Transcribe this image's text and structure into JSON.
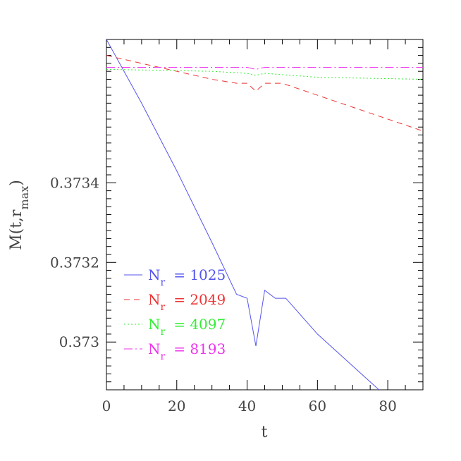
{
  "chart_data": {
    "type": "line",
    "xlabel": "t",
    "ylabel": "M(t,r_max)",
    "ylabel_parts": {
      "base": "M(t,r",
      "sub": "max",
      "close": ")"
    },
    "xlim": [
      0,
      90
    ],
    "ylim": [
      0.37288,
      0.37376
    ],
    "x_ticks": [
      0,
      20,
      40,
      60,
      80
    ],
    "x_tick_labels": [
      "0",
      "20",
      "40",
      "60",
      "80"
    ],
    "y_ticks": [
      0.373,
      0.3732,
      0.3734
    ],
    "y_tick_labels": [
      "0.373",
      "0.3732",
      "0.3734"
    ],
    "legend_position": "lower-left",
    "series": [
      {
        "name": "N_r = 1025",
        "label_base": "N",
        "label_sub": "r",
        "label_value": "= 1025",
        "color": "#5555ee",
        "dash": "solid",
        "points": [
          [
            0,
            0.37376
          ],
          [
            10,
            0.3736
          ],
          [
            20,
            0.37343
          ],
          [
            30,
            0.37325
          ],
          [
            37,
            0.37312
          ],
          [
            40,
            0.37311
          ],
          [
            42.5,
            0.37299
          ],
          [
            45,
            0.37313
          ],
          [
            48,
            0.37311
          ],
          [
            51,
            0.37311
          ],
          [
            55,
            0.37307
          ],
          [
            60,
            0.37302
          ],
          [
            70,
            0.37294
          ],
          [
            80,
            0.37286
          ],
          [
            90,
            0.37275
          ]
        ]
      },
      {
        "name": "N_r = 2049",
        "label_base": "N",
        "label_sub": "r",
        "label_value": "= 2049",
        "color": "#ee3333",
        "dash": "8,6",
        "points": [
          [
            0,
            0.37372
          ],
          [
            10,
            0.3737
          ],
          [
            20,
            0.37368
          ],
          [
            30,
            0.37366
          ],
          [
            37,
            0.37365
          ],
          [
            40,
            0.37365
          ],
          [
            42.5,
            0.37363
          ],
          [
            45,
            0.37365
          ],
          [
            50,
            0.37365
          ],
          [
            60,
            0.37362
          ],
          [
            70,
            0.37359
          ],
          [
            80,
            0.37356
          ],
          [
            90,
            0.37353
          ]
        ]
      },
      {
        "name": "N_r = 4097",
        "label_base": "N",
        "label_sub": "r",
        "label_value": "= 4097",
        "color": "#33ee33",
        "dash": "2,3",
        "points": [
          [
            0,
            0.373685
          ],
          [
            30,
            0.37368
          ],
          [
            40,
            0.373675
          ],
          [
            42.5,
            0.37367
          ],
          [
            45,
            0.373675
          ],
          [
            60,
            0.373665
          ],
          [
            90,
            0.37366
          ]
        ]
      },
      {
        "name": "N_r = 8193",
        "label_base": "N",
        "label_sub": "r",
        "label_value": "= 8193",
        "color": "#ee33ee",
        "dash": "12,4,2,4",
        "points": [
          [
            0,
            0.37369
          ],
          [
            40,
            0.37369
          ],
          [
            42.5,
            0.373685
          ],
          [
            45,
            0.37369
          ],
          [
            90,
            0.37369
          ]
        ]
      }
    ]
  }
}
